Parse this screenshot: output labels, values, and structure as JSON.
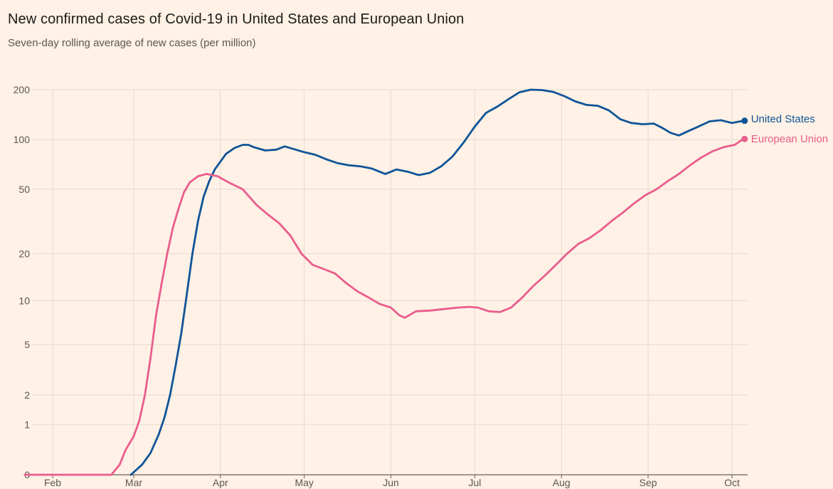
{
  "header": {
    "title": "New confirmed cases of Covid-19 in United States and European Union",
    "subtitle": "Seven-day rolling average of new cases (per million)"
  },
  "colors": {
    "background": "#fff1e5",
    "grid": "#e6d9ce",
    "axis": "#66605c",
    "us": "#0f5499",
    "eu": "#e95d8c"
  },
  "chart_data": {
    "type": "line",
    "title": "New confirmed cases of Covid-19 in United States and European Union",
    "subtitle": "Seven-day rolling average of new cases (per million)",
    "y_scale": "log (symlog, 0 at baseline)",
    "y_ticks": [
      0,
      1,
      2,
      5,
      10,
      20,
      50,
      100,
      200
    ],
    "y_tick_labels": [
      "0",
      "1",
      "2",
      "5",
      "10",
      "20",
      "50",
      "100",
      "200"
    ],
    "x_ticks": [
      "2020-02-01",
      "2020-03-01",
      "2020-04-01",
      "2020-05-01",
      "2020-06-01",
      "2020-07-01",
      "2020-08-01",
      "2020-09-01",
      "2020-10-01"
    ],
    "x_tick_labels": [
      "Feb",
      "Mar",
      "Apr",
      "May",
      "Jun",
      "Jul",
      "Aug",
      "Sep",
      "Oct"
    ],
    "x_range": [
      "2020-01-22",
      "2020-10-06"
    ],
    "grid": true,
    "legend": "direct labels at line ends (right)",
    "series": [
      {
        "name": "United States",
        "points": [
          [
            "2020-02-29",
            0
          ],
          [
            "2020-03-04",
            0.15
          ],
          [
            "2020-03-07",
            0.35
          ],
          [
            "2020-03-10",
            0.75
          ],
          [
            "2020-03-12",
            1.2
          ],
          [
            "2020-03-14",
            2.0
          ],
          [
            "2020-03-16",
            3.5
          ],
          [
            "2020-03-18",
            6
          ],
          [
            "2020-03-20",
            11
          ],
          [
            "2020-03-22",
            20
          ],
          [
            "2020-03-24",
            32
          ],
          [
            "2020-03-26",
            45
          ],
          [
            "2020-03-28",
            56
          ],
          [
            "2020-03-30",
            66
          ],
          [
            "2020-04-03",
            82
          ],
          [
            "2020-04-06",
            89
          ],
          [
            "2020-04-09",
            93
          ],
          [
            "2020-04-11",
            93
          ],
          [
            "2020-04-13",
            90
          ],
          [
            "2020-04-17",
            86
          ],
          [
            "2020-04-21",
            87
          ],
          [
            "2020-04-24",
            91
          ],
          [
            "2020-04-28",
            87
          ],
          [
            "2020-05-01",
            84
          ],
          [
            "2020-05-05",
            81
          ],
          [
            "2020-05-09",
            76
          ],
          [
            "2020-05-13",
            72
          ],
          [
            "2020-05-17",
            70
          ],
          [
            "2020-05-21",
            69
          ],
          [
            "2020-05-25",
            67
          ],
          [
            "2020-05-30",
            62
          ],
          [
            "2020-06-03",
            66
          ],
          [
            "2020-06-07",
            64
          ],
          [
            "2020-06-11",
            61
          ],
          [
            "2020-06-15",
            63
          ],
          [
            "2020-06-19",
            69
          ],
          [
            "2020-06-23",
            79
          ],
          [
            "2020-06-27",
            96
          ],
          [
            "2020-07-01",
            120
          ],
          [
            "2020-07-05",
            145
          ],
          [
            "2020-07-09",
            158
          ],
          [
            "2020-07-13",
            175
          ],
          [
            "2020-07-17",
            193
          ],
          [
            "2020-07-21",
            200
          ],
          [
            "2020-07-25",
            199
          ],
          [
            "2020-07-29",
            194
          ],
          [
            "2020-08-02",
            183
          ],
          [
            "2020-08-06",
            170
          ],
          [
            "2020-08-10",
            162
          ],
          [
            "2020-08-14",
            160
          ],
          [
            "2020-08-18",
            150
          ],
          [
            "2020-08-22",
            133
          ],
          [
            "2020-08-26",
            126
          ],
          [
            "2020-08-30",
            124
          ],
          [
            "2020-09-03",
            125
          ],
          [
            "2020-09-06",
            118
          ],
          [
            "2020-09-09",
            110
          ],
          [
            "2020-09-12",
            106
          ],
          [
            "2020-09-15",
            112
          ],
          [
            "2020-09-19",
            120
          ],
          [
            "2020-09-23",
            129
          ],
          [
            "2020-09-27",
            131
          ],
          [
            "2020-10-01",
            126
          ],
          [
            "2020-10-05",
            130
          ]
        ]
      },
      {
        "name": "European Union",
        "points": [
          [
            "2020-01-22",
            0
          ],
          [
            "2020-02-22",
            0
          ],
          [
            "2020-02-25",
            0.15
          ],
          [
            "2020-02-27",
            0.4
          ],
          [
            "2020-03-01",
            0.7
          ],
          [
            "2020-03-03",
            1.1
          ],
          [
            "2020-03-05",
            2.0
          ],
          [
            "2020-03-07",
            4
          ],
          [
            "2020-03-09",
            8
          ],
          [
            "2020-03-11",
            13
          ],
          [
            "2020-03-13",
            20
          ],
          [
            "2020-03-15",
            29
          ],
          [
            "2020-03-17",
            38
          ],
          [
            "2020-03-19",
            48
          ],
          [
            "2020-03-21",
            55
          ],
          [
            "2020-03-24",
            60
          ],
          [
            "2020-03-27",
            62
          ],
          [
            "2020-03-31",
            60
          ],
          [
            "2020-04-04",
            55
          ],
          [
            "2020-04-09",
            50
          ],
          [
            "2020-04-14",
            40
          ],
          [
            "2020-04-18",
            35
          ],
          [
            "2020-04-22",
            31
          ],
          [
            "2020-04-26",
            26
          ],
          [
            "2020-04-30",
            20
          ],
          [
            "2020-05-04",
            17
          ],
          [
            "2020-05-08",
            16
          ],
          [
            "2020-05-12",
            15
          ],
          [
            "2020-05-16",
            13
          ],
          [
            "2020-05-20",
            11.5
          ],
          [
            "2020-05-24",
            10.5
          ],
          [
            "2020-05-28",
            9.5
          ],
          [
            "2020-06-01",
            9.0
          ],
          [
            "2020-06-04",
            8.0
          ],
          [
            "2020-06-06",
            7.7
          ],
          [
            "2020-06-10",
            8.5
          ],
          [
            "2020-06-15",
            8.6
          ],
          [
            "2020-06-20",
            8.8
          ],
          [
            "2020-06-25",
            9.0
          ],
          [
            "2020-06-29",
            9.1
          ],
          [
            "2020-07-02",
            9.0
          ],
          [
            "2020-07-06",
            8.5
          ],
          [
            "2020-07-10",
            8.4
          ],
          [
            "2020-07-14",
            9.0
          ],
          [
            "2020-07-18",
            10.5
          ],
          [
            "2020-07-22",
            12.5
          ],
          [
            "2020-07-26",
            14.5
          ],
          [
            "2020-07-30",
            17
          ],
          [
            "2020-08-03",
            20
          ],
          [
            "2020-08-07",
            23
          ],
          [
            "2020-08-11",
            25
          ],
          [
            "2020-08-15",
            28
          ],
          [
            "2020-08-19",
            32
          ],
          [
            "2020-08-23",
            36
          ],
          [
            "2020-08-27",
            41
          ],
          [
            "2020-08-31",
            46
          ],
          [
            "2020-09-04",
            50
          ],
          [
            "2020-09-08",
            56
          ],
          [
            "2020-09-12",
            62
          ],
          [
            "2020-09-16",
            70
          ],
          [
            "2020-09-20",
            78
          ],
          [
            "2020-09-24",
            85
          ],
          [
            "2020-09-28",
            90
          ],
          [
            "2020-10-02",
            93
          ],
          [
            "2020-10-05",
            101
          ]
        ]
      }
    ]
  }
}
